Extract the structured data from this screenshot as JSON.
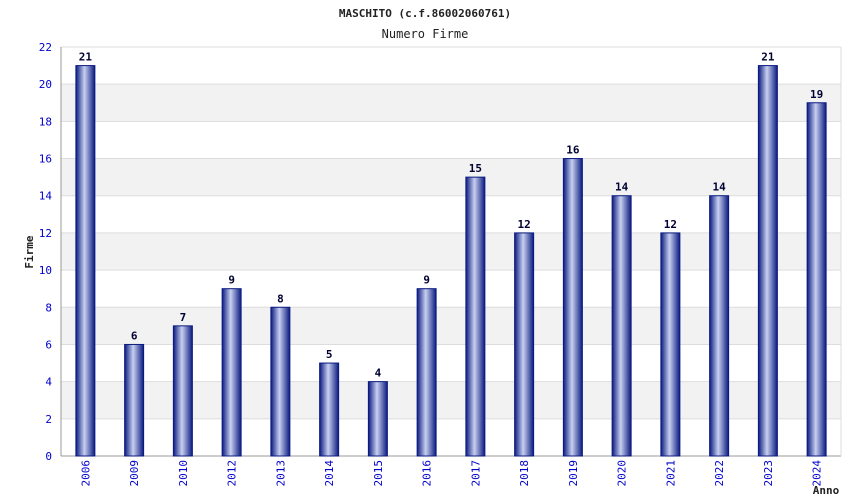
{
  "chart_data": {
    "type": "bar",
    "title": "MASCHITO (c.f.86002060761)",
    "subtitle": "Numero Firme",
    "xlabel": "Anno",
    "ylabel": "Firme",
    "categories": [
      "2006",
      "2009",
      "2010",
      "2012",
      "2013",
      "2014",
      "2015",
      "2016",
      "2017",
      "2018",
      "2019",
      "2020",
      "2021",
      "2022",
      "2023",
      "2024"
    ],
    "values": [
      21,
      6,
      7,
      9,
      8,
      5,
      4,
      9,
      15,
      12,
      16,
      14,
      12,
      14,
      21,
      19
    ],
    "ylim": [
      0,
      22
    ],
    "yticks": [
      0,
      2,
      4,
      6,
      8,
      10,
      12,
      14,
      16,
      18,
      20,
      22
    ],
    "grid": true,
    "bar_color": "#1a2a9a",
    "bar_highlight": "#c8d0f0",
    "tick_color": "#0000cc"
  }
}
